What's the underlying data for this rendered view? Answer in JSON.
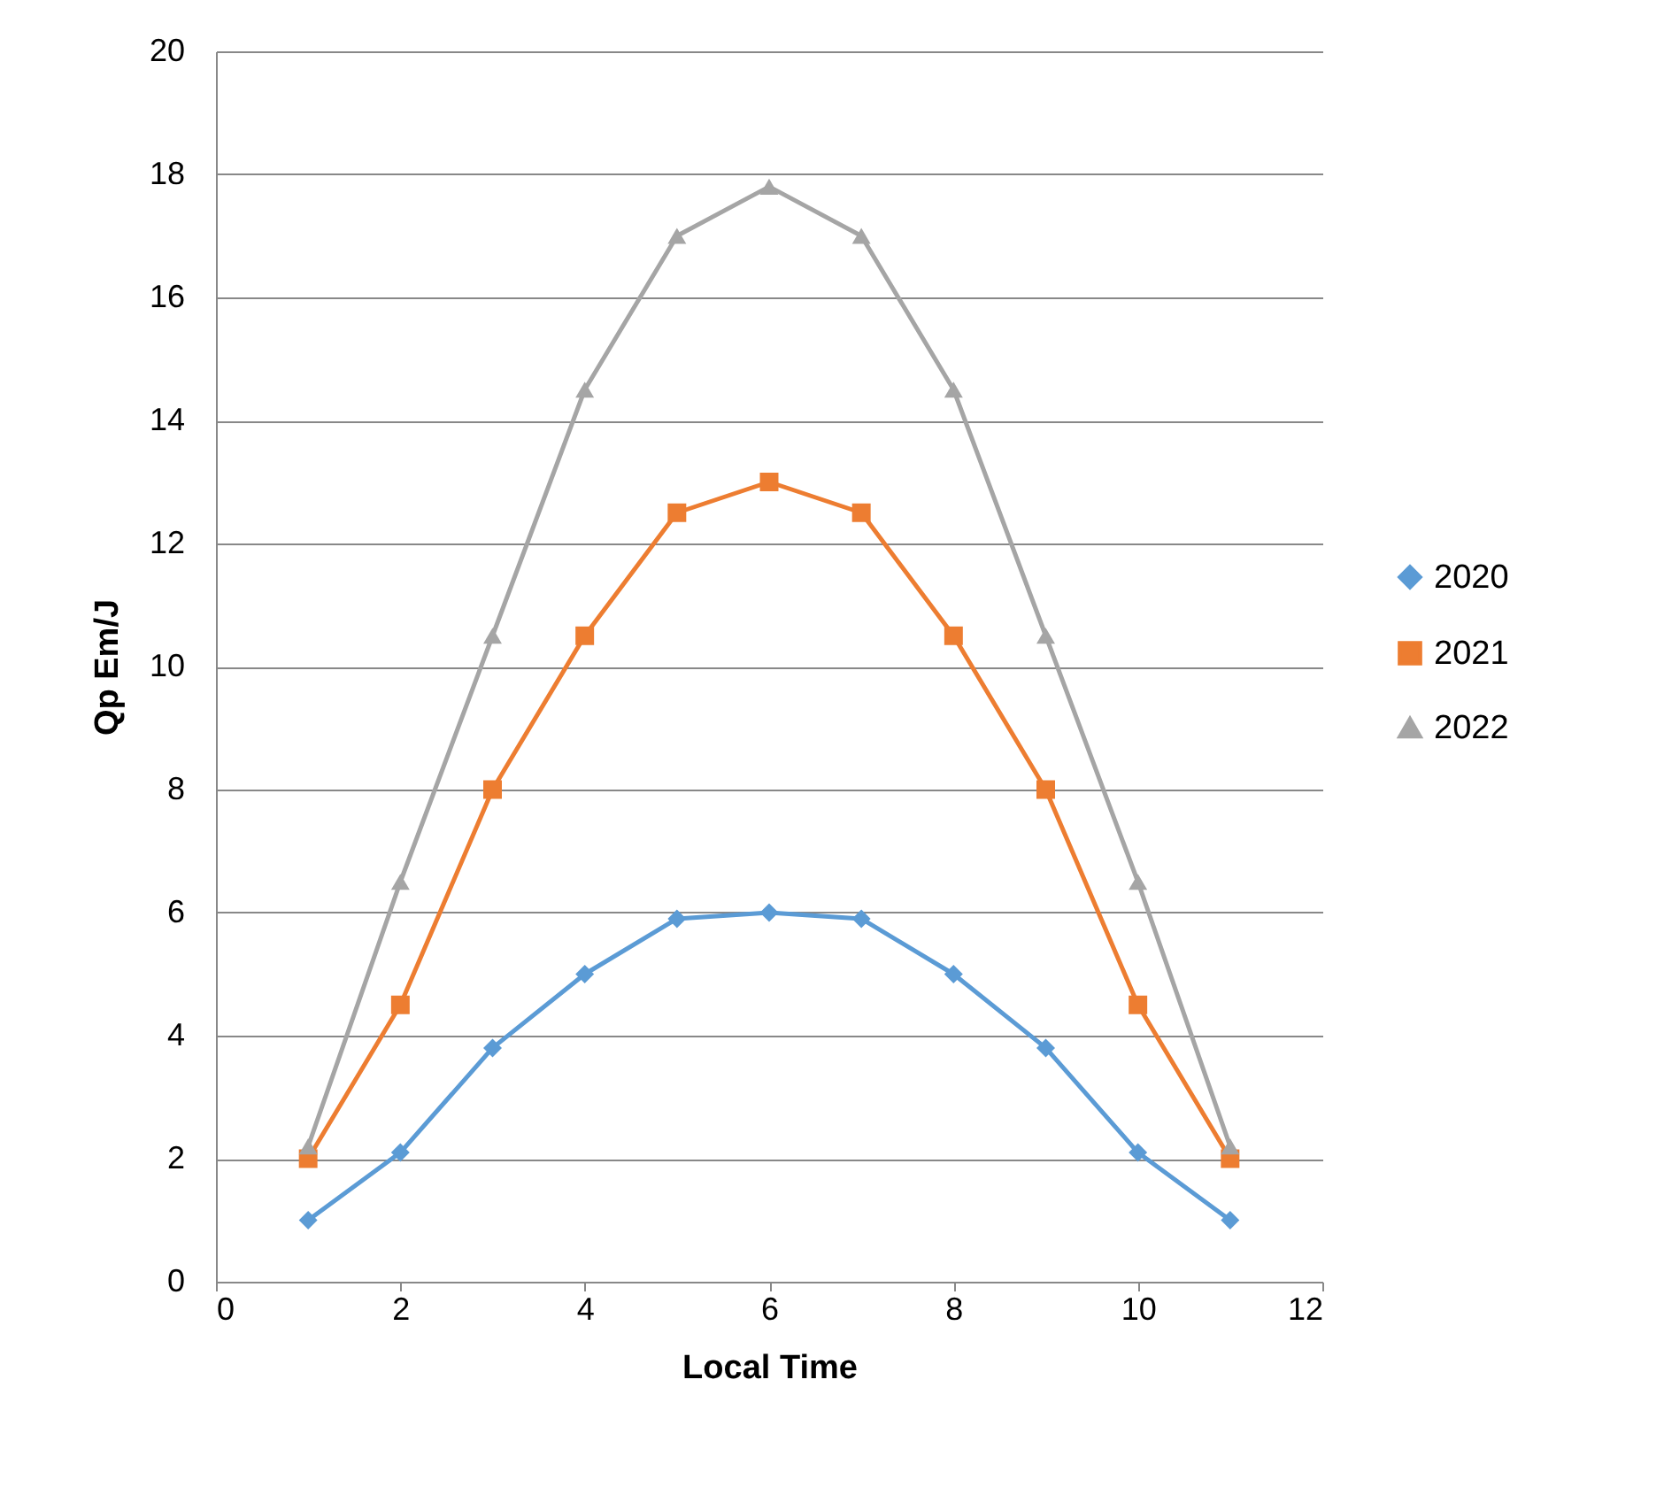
{
  "chart_data": {
    "type": "line",
    "xlabel": "Local Time",
    "ylabel": "Qp Em/J",
    "x": [
      1,
      2,
      3,
      4,
      5,
      6,
      7,
      8,
      9,
      10,
      11
    ],
    "series": [
      {
        "name": "2020",
        "color": "#5b9bd5",
        "marker": "diamond",
        "values": [
          1,
          2.1,
          3.8,
          5,
          5.9,
          6,
          5.9,
          5,
          3.8,
          2.1,
          1
        ]
      },
      {
        "name": "2021",
        "color": "#ed7d31",
        "marker": "square",
        "values": [
          2,
          4.5,
          8,
          10.5,
          12.5,
          13,
          12.5,
          10.5,
          8,
          4.5,
          2
        ]
      },
      {
        "name": "2022",
        "color": "#a5a5a5",
        "marker": "triangle",
        "values": [
          2.2,
          6.5,
          10.5,
          14.5,
          17,
          17.8,
          17,
          14.5,
          10.5,
          6.5,
          2.2
        ]
      }
    ],
    "xlim": [
      0,
      12
    ],
    "xticks": [
      0,
      2,
      4,
      6,
      8,
      10,
      12
    ],
    "ylim": [
      0,
      20
    ],
    "yticks": [
      0,
      2,
      4,
      6,
      8,
      10,
      12,
      14,
      16,
      18,
      20
    ],
    "grid": "y",
    "legend": "right",
    "line_style": "solid"
  }
}
